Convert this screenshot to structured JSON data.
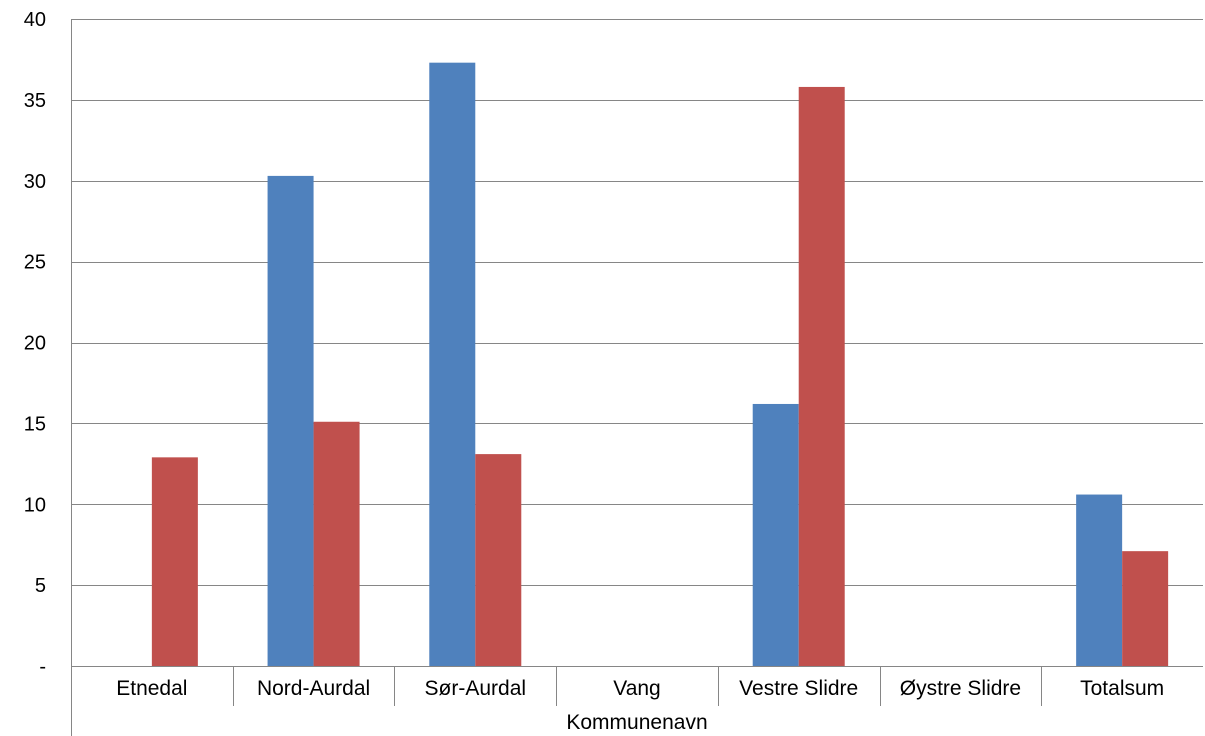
{
  "chart_data": {
    "type": "bar",
    "categories": [
      "Etnedal",
      "Nord-Aurdal",
      "Sør-Aurdal",
      "Vang",
      "Vestre Slidre",
      "Øystre Slidre",
      "Totalsum"
    ],
    "series": [
      {
        "values": [
          0,
          30.3,
          37.3,
          0,
          16.2,
          0,
          10.6
        ],
        "color": "#4f81bd"
      },
      {
        "values": [
          12.9,
          15.1,
          13.1,
          0,
          35.8,
          0,
          7.1
        ],
        "color": "#c0504d"
      }
    ],
    "xlabel": "Kommunenavn",
    "ylabel": "",
    "ylim": [
      0,
      40
    ],
    "yticks": [
      0,
      5,
      10,
      15,
      20,
      25,
      30,
      35,
      40
    ],
    "ytick_labels": [
      "-",
      "5",
      "10",
      "15",
      "20",
      "25",
      "30",
      "35",
      "40"
    ],
    "grid": true,
    "gridline_color": "#868686"
  }
}
